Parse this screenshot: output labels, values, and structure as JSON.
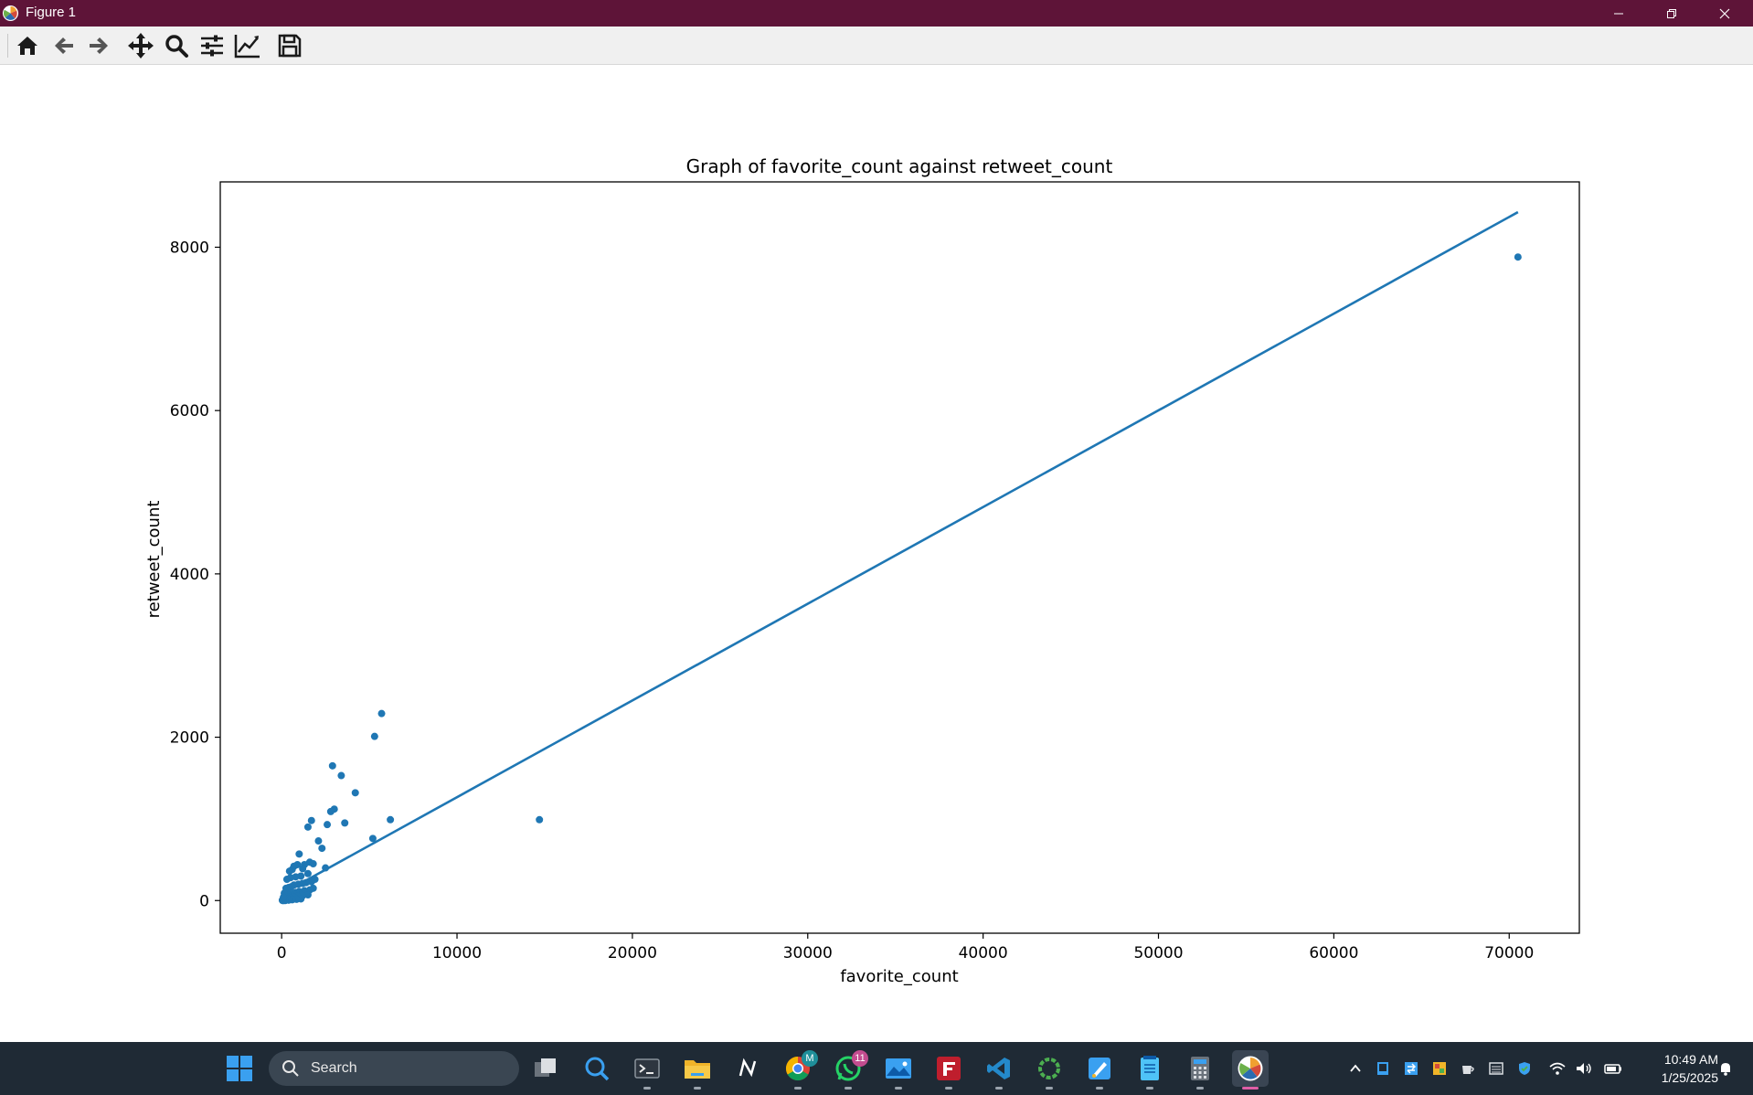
{
  "window": {
    "title": "Figure 1",
    "titlebar_color": "#5e1438",
    "controls": [
      "minimize-icon",
      "restore-icon",
      "close-icon"
    ]
  },
  "toolbar": {
    "buttons": [
      {
        "name": "home-button",
        "icon": "home-icon"
      },
      {
        "name": "back-button",
        "icon": "arrow-left-icon"
      },
      {
        "name": "forward-button",
        "icon": "arrow-right-icon"
      },
      {
        "name": "pan-button",
        "icon": "move-icon"
      },
      {
        "name": "zoom-button",
        "icon": "magnifier-icon"
      },
      {
        "name": "configure-subplots-button",
        "icon": "sliders-icon"
      },
      {
        "name": "edit-axis-button",
        "icon": "line-chart-icon"
      },
      {
        "name": "save-button",
        "icon": "floppy-disk-icon"
      }
    ]
  },
  "chart_data": {
    "type": "scatter",
    "title": "Graph of favorite_count against retweet_count",
    "xlabel": "favorite_count",
    "ylabel": "retweet_count",
    "xlim": [
      -3500,
      74000
    ],
    "ylim": [
      -400,
      8800
    ],
    "xticks": [
      0,
      10000,
      20000,
      30000,
      40000,
      50000,
      60000,
      70000
    ],
    "xtick_labels": [
      "0",
      "10000",
      "20000",
      "30000",
      "40000",
      "50000",
      "60000",
      "70000"
    ],
    "yticks": [
      0,
      2000,
      4000,
      6000,
      8000
    ],
    "ytick_labels": [
      "0",
      "2000",
      "4000",
      "6000",
      "8000"
    ],
    "grid": false,
    "color": "#1f77b4",
    "series": [
      {
        "type": "scatter",
        "points": [
          [
            70500,
            7880
          ],
          [
            14700,
            990
          ],
          [
            5700,
            2290
          ],
          [
            5300,
            2010
          ],
          [
            6200,
            990
          ],
          [
            5200,
            760
          ],
          [
            4200,
            1320
          ],
          [
            3400,
            1530
          ],
          [
            2900,
            1650
          ],
          [
            3000,
            1120
          ],
          [
            2800,
            1090
          ],
          [
            2600,
            930
          ],
          [
            3600,
            950
          ],
          [
            1700,
            980
          ],
          [
            1500,
            900
          ],
          [
            2100,
            730
          ],
          [
            2300,
            640
          ],
          [
            2500,
            400
          ],
          [
            1000,
            570
          ],
          [
            1600,
            470
          ],
          [
            1800,
            450
          ],
          [
            1300,
            440
          ],
          [
            900,
            440
          ],
          [
            700,
            420
          ],
          [
            1200,
            390
          ],
          [
            600,
            380
          ],
          [
            450,
            360
          ],
          [
            1500,
            330
          ],
          [
            1100,
            300
          ],
          [
            800,
            290
          ],
          [
            500,
            280
          ],
          [
            300,
            260
          ],
          [
            1900,
            260
          ],
          [
            1700,
            230
          ],
          [
            1400,
            220
          ],
          [
            1200,
            210
          ],
          [
            950,
            200
          ],
          [
            700,
            190
          ],
          [
            550,
            170
          ],
          [
            400,
            160
          ],
          [
            250,
            150
          ],
          [
            1800,
            150
          ],
          [
            1600,
            130
          ],
          [
            1300,
            120
          ],
          [
            1000,
            110
          ],
          [
            800,
            100
          ],
          [
            650,
            90
          ],
          [
            500,
            80
          ],
          [
            350,
            70
          ],
          [
            200,
            60
          ],
          [
            1500,
            70
          ],
          [
            1200,
            60
          ],
          [
            900,
            50
          ],
          [
            700,
            40
          ],
          [
            500,
            30
          ],
          [
            350,
            25
          ],
          [
            250,
            20
          ],
          [
            150,
            15
          ],
          [
            80,
            10
          ],
          [
            40,
            5
          ],
          [
            1100,
            20
          ],
          [
            850,
            15
          ],
          [
            600,
            10
          ],
          [
            400,
            5
          ],
          [
            200,
            0
          ],
          [
            100,
            0
          ],
          [
            60,
            0
          ],
          [
            300,
            120
          ],
          [
            150,
            90
          ],
          [
            100,
            40
          ]
        ]
      },
      {
        "type": "line",
        "points": [
          [
            1000,
            200
          ],
          [
            70500,
            8430
          ]
        ]
      }
    ]
  },
  "taskbar": {
    "search_label": "Search",
    "apps": [
      {
        "name": "task-view-button",
        "icon": "task-view-icon"
      },
      {
        "name": "magnifier-app",
        "icon": "magnifier-icon"
      },
      {
        "name": "terminal-app",
        "icon": "terminal-icon"
      },
      {
        "name": "file-explorer-app",
        "icon": "folder-icon"
      },
      {
        "name": "notion-app",
        "icon": "notion-icon"
      },
      {
        "name": "chrome-app",
        "icon": "chrome-icon",
        "badge": "M"
      },
      {
        "name": "whatsapp-app",
        "icon": "whatsapp-icon",
        "badge": "11"
      },
      {
        "name": "photos-app",
        "icon": "photos-icon"
      },
      {
        "name": "filezilla-app",
        "icon": "filezilla-icon"
      },
      {
        "name": "vscode-app",
        "icon": "vscode-icon"
      },
      {
        "name": "circle-app",
        "icon": "ring-icon"
      },
      {
        "name": "paint-app",
        "icon": "paint-icon"
      },
      {
        "name": "notepad-app",
        "icon": "notepad-icon"
      },
      {
        "name": "calculator-app",
        "icon": "calculator-icon"
      },
      {
        "name": "matplotlib-app",
        "icon": "matplotlib-icon"
      }
    ],
    "tray_icons": [
      "chevron-up-icon",
      "tablet-icon",
      "sync-icon",
      "image-icon",
      "cup-icon",
      "keyboard-icon",
      "shield-icon",
      "wifi-icon",
      "speaker-icon",
      "battery-icon"
    ],
    "time": "10:49 AM",
    "date": "1/25/2025"
  }
}
